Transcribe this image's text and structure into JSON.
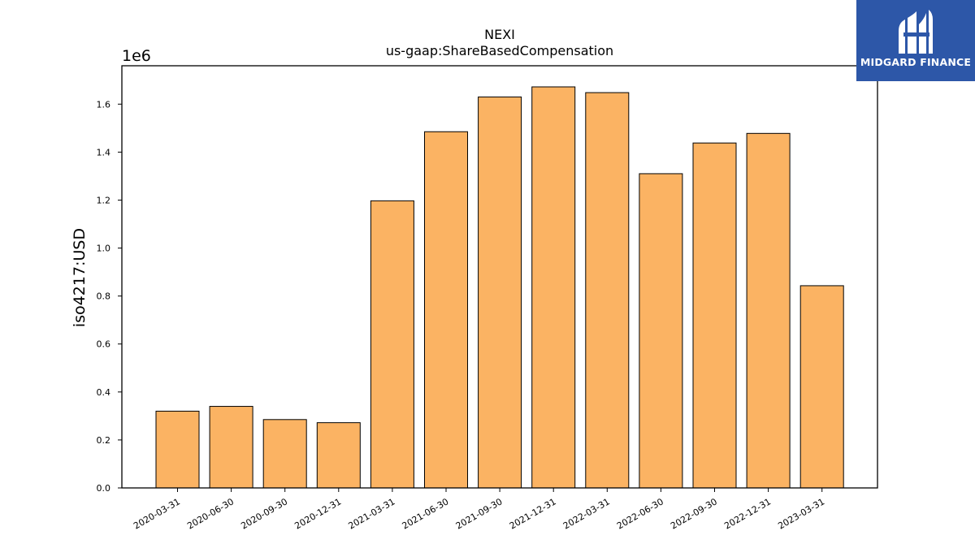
{
  "chart_data": {
    "type": "bar",
    "title": "NEXI",
    "subtitle": "us-gaap:ShareBasedCompensation",
    "ylabel": "iso4217:USD",
    "xlabel": "",
    "y_offset_label": "1e6",
    "ylim": [
      0,
      1.76
    ],
    "yticks": [
      0.0,
      0.2,
      0.4,
      0.6,
      0.8,
      1.0,
      1.2,
      1.4,
      1.6
    ],
    "ytick_labels": [
      "0.0",
      "0.2",
      "0.4",
      "0.6",
      "0.8",
      "1.0",
      "1.2",
      "1.4",
      "1.6"
    ],
    "y_scale": 1000000,
    "categories": [
      "2020-03-31",
      "2020-06-30",
      "2020-09-30",
      "2020-12-31",
      "2021-03-31",
      "2021-06-30",
      "2021-09-30",
      "2021-12-31",
      "2022-03-31",
      "2022-06-30",
      "2022-09-30",
      "2022-12-31",
      "2023-03-31"
    ],
    "values": [
      320000,
      340000,
      285000,
      272000,
      1197000,
      1485000,
      1630000,
      1672000,
      1648000,
      1310000,
      1438000,
      1478000,
      843000
    ],
    "bar_color": "#fbb363",
    "edge_color": "#000000",
    "grid": false,
    "legend": "none"
  },
  "logo": {
    "text": "MIDGARD FINANCE",
    "background": "#2d57a8",
    "icon": "midgard-logo-icon"
  }
}
